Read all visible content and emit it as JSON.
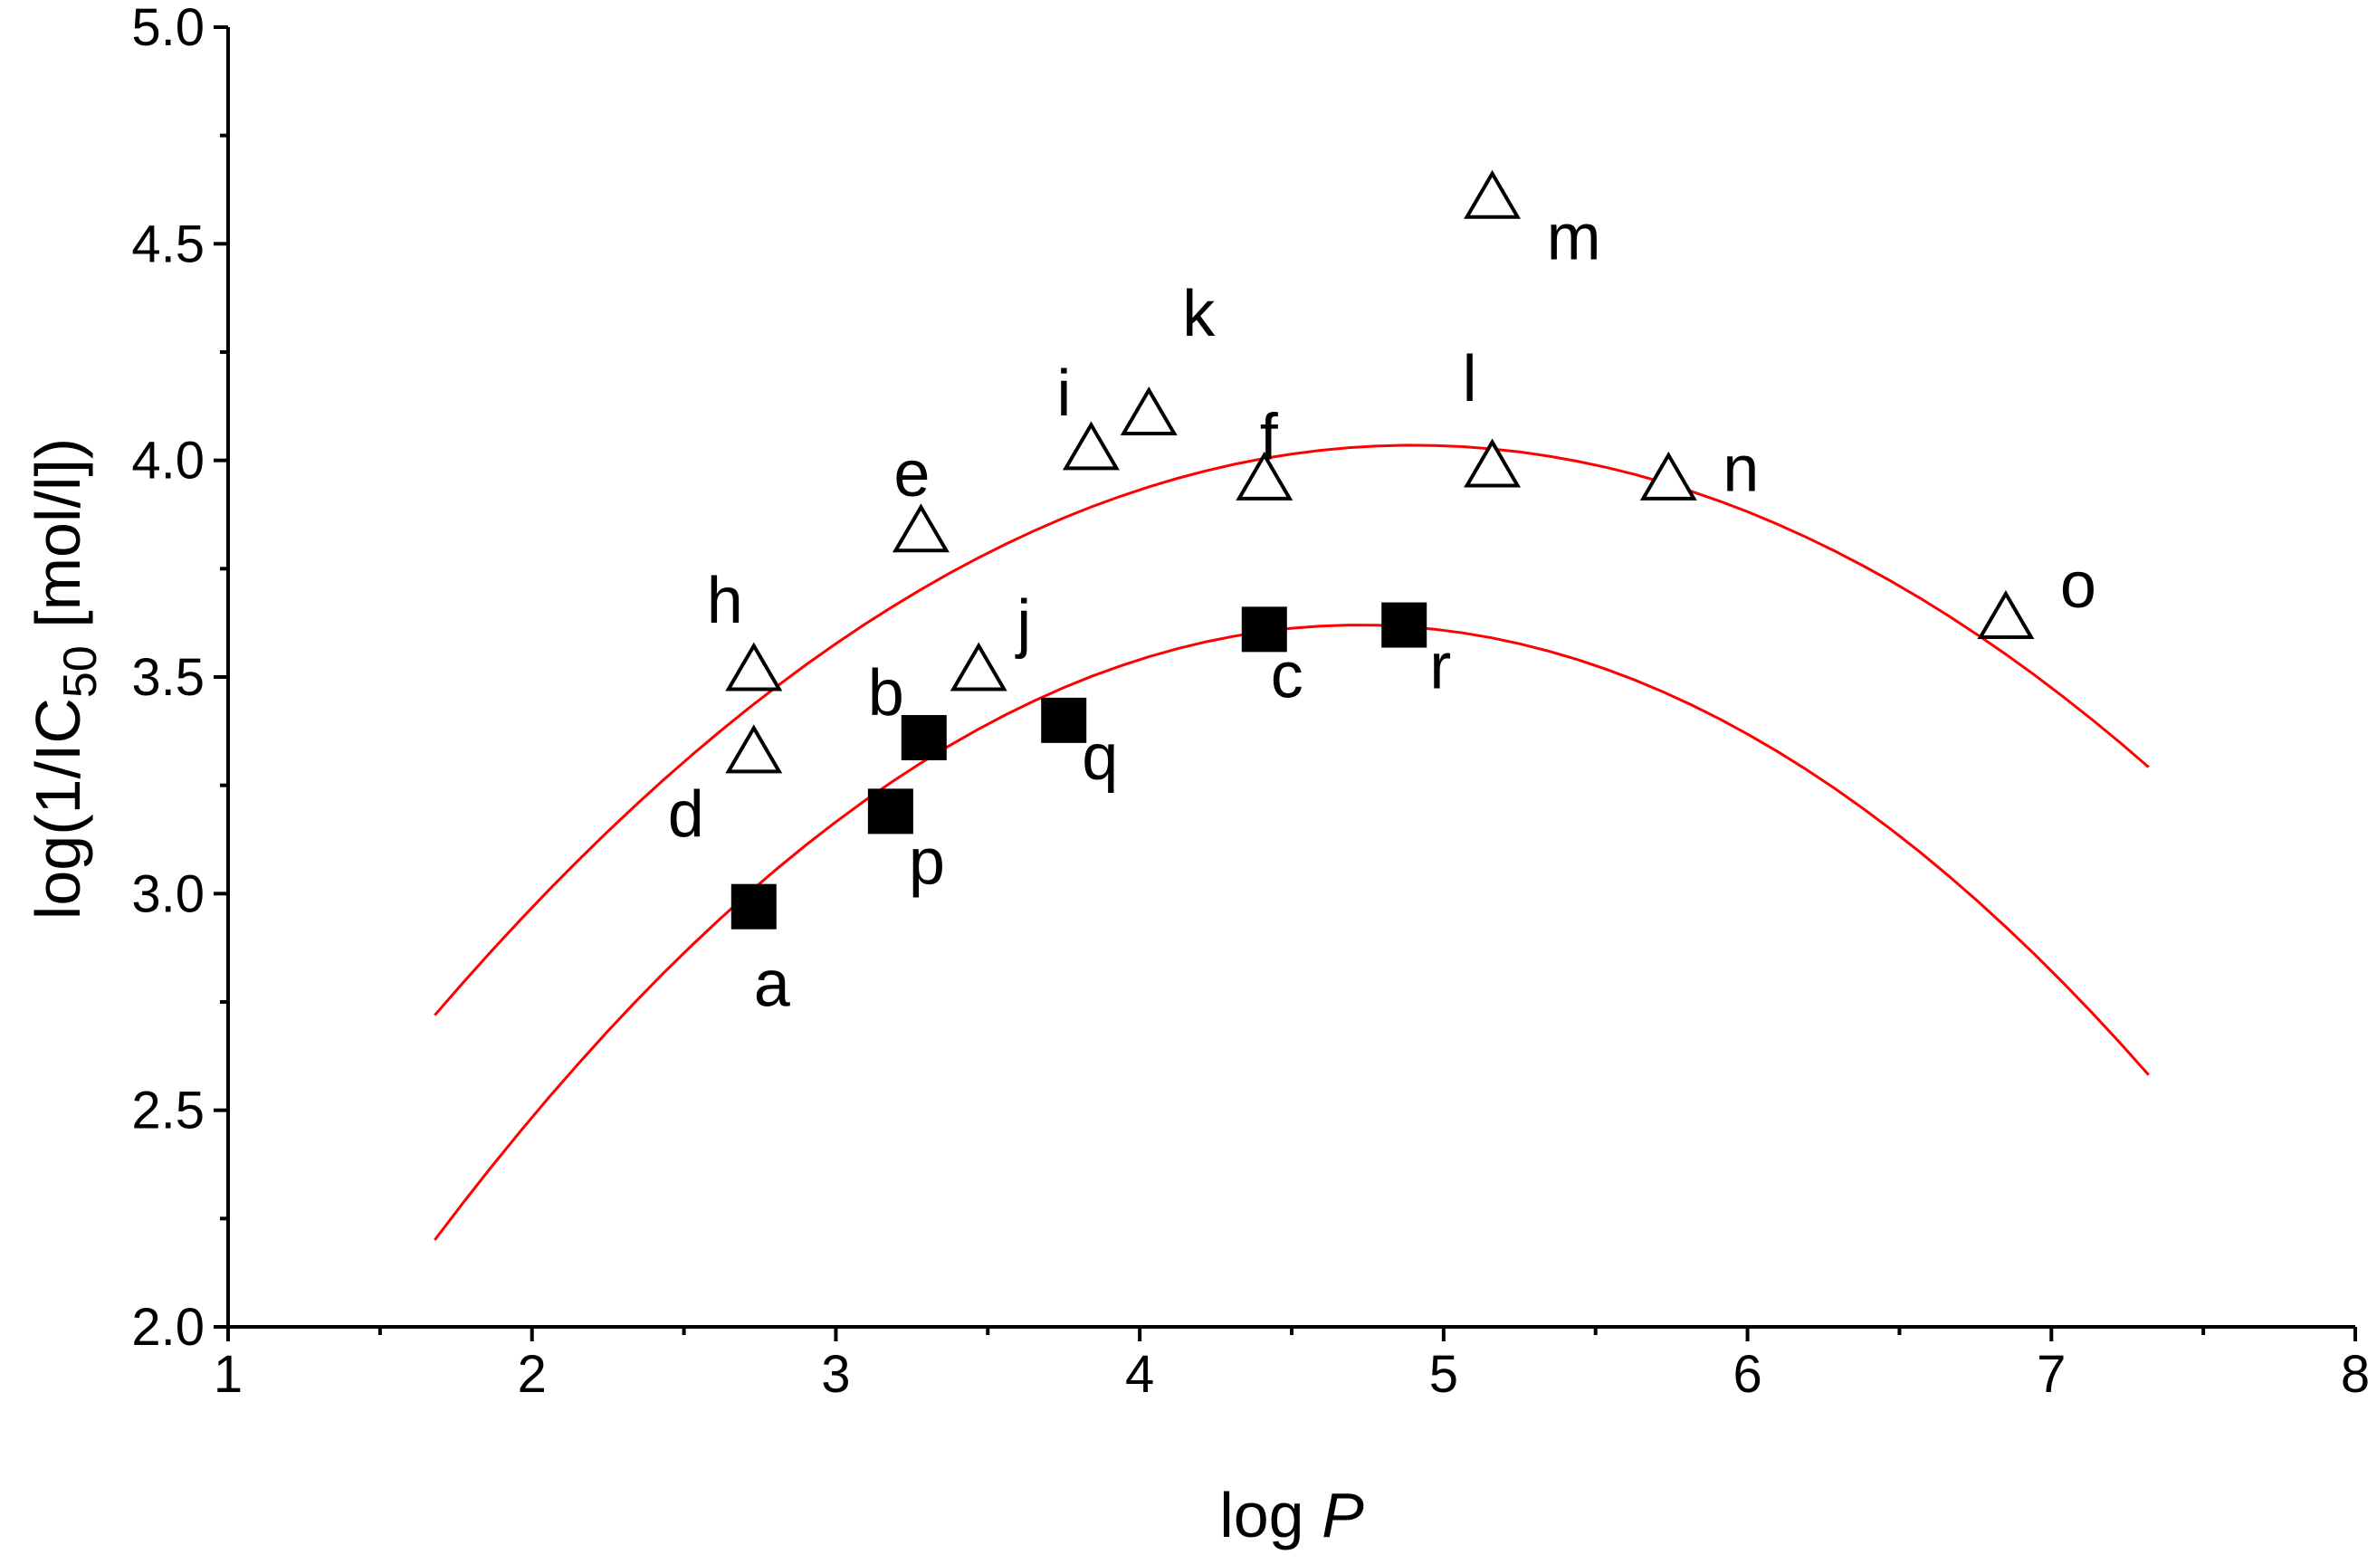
{
  "chart_data": {
    "type": "scatter",
    "xlabel": {
      "prefix": "log ",
      "italic": "P"
    },
    "ylabel": {
      "prefix": "log(1/IC",
      "subscript": "50",
      "suffix": " [mol/l])"
    },
    "xlim": [
      1,
      8
    ],
    "ylim": [
      2.0,
      5.0
    ],
    "x_ticks": [
      "1",
      "2",
      "3",
      "4",
      "5",
      "6",
      "7",
      "8"
    ],
    "y_ticks": [
      "2.0",
      "2.5",
      "3.0",
      "3.5",
      "4.0",
      "4.5",
      "5.0"
    ],
    "grid": false,
    "series": [
      {
        "marker": "open-triangle",
        "points": [
          {
            "label": "h",
            "x": 2.73,
            "y": 3.51
          },
          {
            "label": "d",
            "x": 2.73,
            "y": 3.32
          },
          {
            "label": "e",
            "x": 3.28,
            "y": 3.83
          },
          {
            "label": "j",
            "x": 3.47,
            "y": 3.51
          },
          {
            "label": "i",
            "x": 3.84,
            "y": 4.02
          },
          {
            "label": "k",
            "x": 4.03,
            "y": 4.1
          },
          {
            "label": "f",
            "x": 4.41,
            "y": 3.95
          },
          {
            "label": "m",
            "x": 5.16,
            "y": 4.6
          },
          {
            "label": "l",
            "x": 5.16,
            "y": 3.98
          },
          {
            "label": "n",
            "x": 5.74,
            "y": 3.95
          },
          {
            "label": "o",
            "x": 6.85,
            "y": 3.63
          }
        ]
      },
      {
        "marker": "filled-square",
        "points": [
          {
            "label": "a",
            "x": 2.73,
            "y": 2.97
          },
          {
            "label": "p",
            "x": 3.18,
            "y": 3.19
          },
          {
            "label": "b",
            "x": 3.29,
            "y": 3.36
          },
          {
            "label": "q",
            "x": 3.75,
            "y": 3.4
          },
          {
            "label": "c",
            "x": 4.41,
            "y": 3.61
          },
          {
            "label": "r",
            "x": 4.87,
            "y": 3.62
          }
        ]
      }
    ],
    "fits": [
      {
        "color": "#ff0000",
        "x_range": [
          1.68,
          7.32
        ],
        "vertex_x": 4.9,
        "vertex_y": 4.035,
        "curvature": -0.1269
      },
      {
        "color": "#ff0000",
        "x_range": [
          1.68,
          7.32
        ],
        "vertex_x": 4.72,
        "vertex_y": 3.62,
        "curvature": -0.1536
      }
    ]
  }
}
